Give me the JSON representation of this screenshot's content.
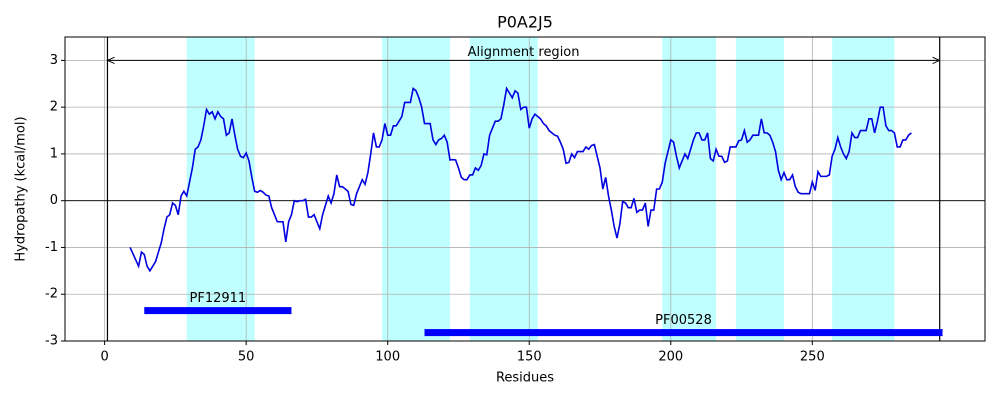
{
  "chart_data": {
    "type": "line",
    "title": "P0A2J5",
    "xlabel": "Residues",
    "ylabel": "Hydropathy (kcal/mol)",
    "xlim": [
      -14,
      311
    ],
    "ylim": [
      -3,
      3.5
    ],
    "xticks": [
      0,
      50,
      100,
      150,
      200,
      250
    ],
    "yticks": [
      -3,
      -2,
      -1,
      0,
      1,
      2,
      3
    ],
    "grid": true,
    "hline": 0,
    "span_color": "#bfffff",
    "spans": [
      {
        "start": 29,
        "end": 53
      },
      {
        "start": 98,
        "end": 122
      },
      {
        "start": 129,
        "end": 153
      },
      {
        "start": 197,
        "end": 216
      },
      {
        "start": 223,
        "end": 240
      },
      {
        "start": 257,
        "end": 279
      }
    ],
    "region": {
      "label": "Alignment region",
      "start": 1,
      "end": 295,
      "y": 3
    },
    "domain_color": "#0000ff",
    "domains": [
      {
        "name": "PF12911",
        "start": 14,
        "end": 66,
        "y": -2.35
      },
      {
        "name": "PF00528",
        "start": 113,
        "end": 296,
        "y": -2.82
      }
    ],
    "x": [
      9,
      12,
      13,
      14,
      15,
      16,
      18,
      20,
      21,
      22,
      23,
      24,
      25,
      26,
      27,
      28,
      29,
      30,
      31,
      32,
      33,
      34,
      35,
      36,
      37,
      38,
      39,
      40,
      41,
      42,
      43,
      44,
      45,
      46,
      47,
      48,
      49,
      50,
      51,
      52,
      53,
      54,
      55,
      56,
      57,
      58,
      59,
      60,
      61,
      62,
      63,
      64,
      65,
      66,
      67,
      68,
      69,
      70,
      71,
      72,
      73,
      74,
      75,
      76,
      77,
      78,
      79,
      80,
      81,
      82,
      83,
      84,
      85,
      86,
      87,
      88,
      89,
      90,
      91,
      92,
      93,
      94,
      95,
      96,
      97,
      98,
      99,
      100,
      101,
      102,
      103,
      104,
      105,
      106,
      107,
      108,
      109,
      110,
      111,
      112,
      113,
      114,
      115,
      116,
      117,
      118,
      119,
      120,
      121,
      122,
      123,
      124,
      125,
      126,
      127,
      128,
      129,
      130,
      131,
      132,
      133,
      134,
      135,
      136,
      137,
      138,
      139,
      140,
      141,
      142,
      143,
      144,
      145,
      146,
      147,
      148,
      149,
      150,
      151,
      152,
      153,
      154,
      155,
      156,
      157,
      158,
      159,
      160,
      161,
      162,
      163,
      164,
      165,
      166,
      167,
      168,
      169,
      170,
      171,
      172,
      173,
      174,
      175,
      176,
      177,
      178,
      179,
      180,
      181,
      182,
      183,
      184,
      185,
      186,
      187,
      188,
      189,
      190,
      191,
      192,
      193,
      194,
      195,
      196,
      197,
      198,
      199,
      200,
      201,
      202,
      203,
      204,
      205,
      206,
      207,
      208,
      209,
      210,
      211,
      212,
      213,
      214,
      215,
      216,
      217,
      218,
      219,
      220,
      221,
      222,
      223,
      224,
      225,
      226,
      227,
      228,
      229,
      230,
      231,
      232,
      233,
      234,
      235,
      236,
      237,
      238,
      239,
      240,
      241,
      242,
      243,
      244,
      245,
      246,
      247,
      248,
      249,
      250,
      251,
      252,
      253,
      254,
      255,
      256,
      257,
      258,
      259,
      260,
      261,
      262,
      263,
      264,
      265,
      266,
      267,
      268,
      269,
      270,
      271,
      272,
      273,
      274,
      275,
      276,
      277,
      278,
      279,
      280,
      281,
      282,
      283,
      284,
      285
    ],
    "series": [
      {
        "color": "#0000e0",
        "values": [
          -1.0,
          -1.4,
          -1.1,
          -1.15,
          -1.4,
          -1.5,
          -1.3,
          -0.9,
          -0.6,
          -0.35,
          -0.3,
          -0.05,
          -0.1,
          -0.3,
          0.1,
          0.2,
          0.1,
          0.4,
          0.7,
          1.1,
          1.15,
          1.3,
          1.6,
          1.95,
          1.85,
          1.9,
          1.75,
          1.9,
          1.8,
          1.75,
          1.4,
          1.45,
          1.75,
          1.4,
          1.1,
          0.95,
          0.92,
          1.02,
          0.85,
          0.5,
          0.2,
          0.18,
          0.22,
          0.18,
          0.12,
          0.1,
          -0.15,
          -0.3,
          -0.45,
          -0.45,
          -0.45,
          -0.88,
          -0.45,
          -0.3,
          0.0,
          -0.02,
          0.0,
          0.0,
          0.03,
          -0.35,
          -0.35,
          -0.3,
          -0.45,
          -0.6,
          -0.3,
          -0.1,
          0.1,
          -0.05,
          0.15,
          0.55,
          0.3,
          0.3,
          0.25,
          0.2,
          -0.08,
          -0.1,
          0.15,
          0.3,
          0.45,
          0.35,
          0.6,
          1.0,
          1.45,
          1.15,
          1.15,
          1.3,
          1.65,
          1.4,
          1.4,
          1.6,
          1.6,
          1.7,
          1.8,
          2.1,
          2.1,
          2.1,
          2.4,
          2.35,
          2.2,
          2.0,
          1.65,
          1.65,
          1.65,
          1.3,
          1.2,
          1.3,
          1.33,
          1.4,
          1.25,
          0.87,
          0.88,
          0.87,
          0.7,
          0.5,
          0.45,
          0.45,
          0.55,
          0.55,
          0.7,
          0.65,
          0.75,
          1.0,
          0.98,
          1.4,
          1.55,
          1.7,
          1.7,
          1.75,
          2.05,
          2.4,
          2.3,
          2.2,
          2.35,
          2.3,
          1.95,
          2.0,
          2.0,
          1.55,
          1.75,
          1.85,
          1.8,
          1.75,
          1.65,
          1.6,
          1.5,
          1.45,
          1.4,
          1.38,
          1.25,
          1.1,
          0.8,
          0.82,
          1.0,
          0.92,
          1.05,
          1.05,
          1.05,
          1.15,
          1.1,
          1.18,
          1.2,
          0.95,
          0.7,
          0.25,
          0.5,
          0.1,
          -0.2,
          -0.55,
          -0.8,
          -0.5,
          -0.02,
          -0.05,
          -0.15,
          -0.15,
          0.05,
          -0.25,
          -0.2,
          -0.2,
          -0.05,
          -0.55,
          -0.2,
          -0.2,
          0.25,
          0.25,
          0.4,
          0.8,
          1.05,
          1.3,
          1.25,
          0.95,
          0.7,
          0.85,
          1.0,
          0.9,
          1.1,
          1.3,
          1.45,
          1.45,
          1.3,
          1.3,
          1.45,
          0.9,
          0.85,
          1.1,
          0.95,
          0.95,
          0.82,
          0.85,
          1.15,
          1.15,
          1.15,
          1.28,
          1.3,
          1.5,
          1.25,
          1.3,
          1.4,
          1.4,
          1.4,
          1.75,
          1.45,
          1.45,
          1.4,
          1.25,
          1.05,
          0.65,
          0.45,
          0.6,
          0.45,
          0.45,
          0.55,
          0.3,
          0.18,
          0.15,
          0.15,
          0.15,
          0.15,
          0.4,
          0.22,
          0.62,
          0.52,
          0.52,
          0.52,
          0.55,
          0.95,
          1.1,
          1.35,
          1.15,
          1.0,
          0.9,
          1.05,
          1.45,
          1.35,
          1.35,
          1.5,
          1.5,
          1.5,
          1.75,
          1.75,
          1.45,
          1.7,
          2.0,
          2.0,
          1.6,
          1.5,
          1.5,
          1.45,
          1.15,
          1.15,
          1.3,
          1.3,
          1.4,
          1.45
        ]
      }
    ]
  }
}
